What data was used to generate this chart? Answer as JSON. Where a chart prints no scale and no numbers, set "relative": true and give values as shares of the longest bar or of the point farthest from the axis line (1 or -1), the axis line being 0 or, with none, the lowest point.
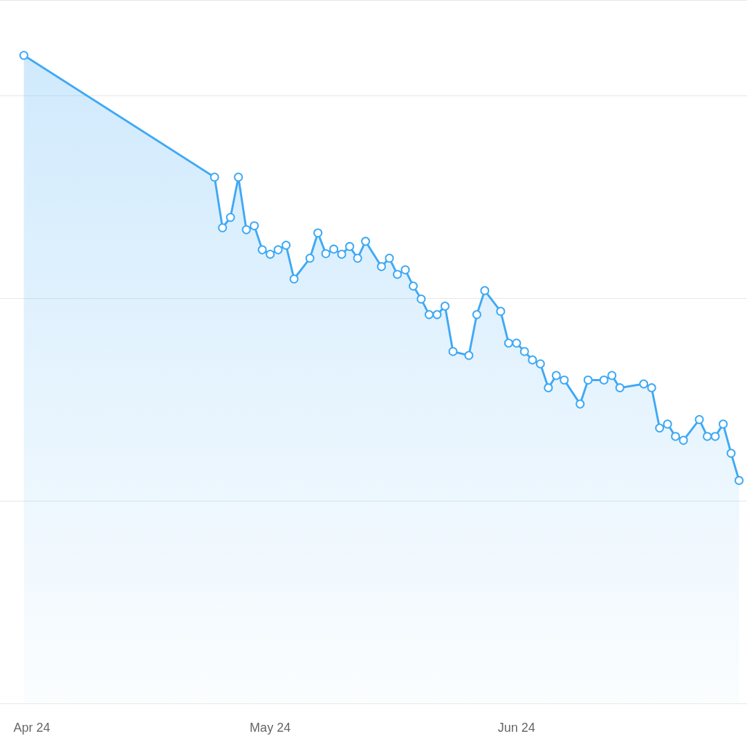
{
  "chart_data": {
    "type": "area",
    "relative": true,
    "color": "#3fa9f5",
    "marker": "circle",
    "grid": "y",
    "x": [
      "2024-03-31",
      "2024-04-24",
      "2024-04-25",
      "2024-04-26",
      "2024-04-27",
      "2024-04-28",
      "2024-04-29",
      "2024-04-30",
      "2024-05-01",
      "2024-05-02",
      "2024-05-03",
      "2024-05-04",
      "2024-05-06",
      "2024-05-07",
      "2024-05-08",
      "2024-05-09",
      "2024-05-10",
      "2024-05-11",
      "2024-05-12",
      "2024-05-13",
      "2024-05-15",
      "2024-05-16",
      "2024-05-17",
      "2024-05-18",
      "2024-05-19",
      "2024-05-20",
      "2024-05-21",
      "2024-05-22",
      "2024-05-23",
      "2024-05-24",
      "2024-05-26",
      "2024-05-27",
      "2024-05-28",
      "2024-05-30",
      "2024-05-31",
      "2024-06-01",
      "2024-06-02",
      "2024-06-03",
      "2024-06-04",
      "2024-06-05",
      "2024-06-06",
      "2024-06-07",
      "2024-06-09",
      "2024-06-10",
      "2024-06-12",
      "2024-06-13",
      "2024-06-14",
      "2024-06-17",
      "2024-06-18",
      "2024-06-19",
      "2024-06-20",
      "2024-06-21",
      "2024-06-22",
      "2024-06-24",
      "2024-06-25",
      "2024-06-26",
      "2024-06-27",
      "2024-06-28",
      "2024-06-29"
    ],
    "values": [
      1.0,
      0.812,
      0.734,
      0.75,
      0.812,
      0.731,
      0.737,
      0.7,
      0.693,
      0.7,
      0.707,
      0.655,
      0.687,
      0.726,
      0.694,
      0.701,
      0.693,
      0.705,
      0.687,
      0.713,
      0.674,
      0.687,
      0.662,
      0.669,
      0.644,
      0.624,
      0.6,
      0.6,
      0.613,
      0.543,
      0.537,
      0.6,
      0.637,
      0.605,
      0.556,
      0.556,
      0.543,
      0.53,
      0.524,
      0.487,
      0.506,
      0.499,
      0.462,
      0.499,
      0.499,
      0.506,
      0.487,
      0.493,
      0.487,
      0.425,
      0.431,
      0.412,
      0.406,
      0.438,
      0.412,
      0.412,
      0.431,
      0.386,
      0.344
    ],
    "xlim": [
      "2024-03-28",
      "2024-06-30"
    ],
    "xticks": [
      {
        "value": "2024-04-01",
        "label": "Apr 24"
      },
      {
        "value": "2024-05-01",
        "label": "May 24"
      },
      {
        "value": "2024-06-01",
        "label": "Jun 24"
      }
    ]
  }
}
